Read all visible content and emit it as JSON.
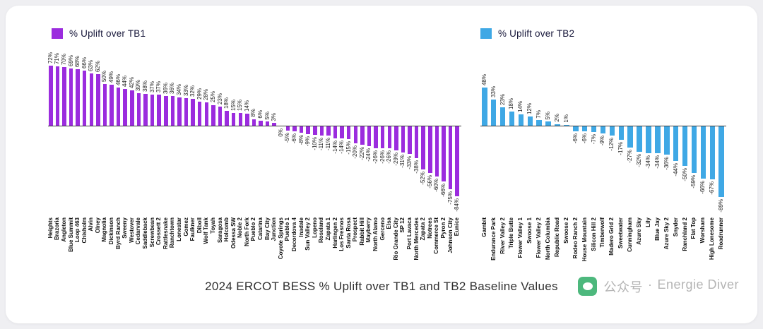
{
  "page": {
    "title": "2024 ERCOT BESS % Uplift over TB1 and TB2 Baseline Values",
    "watermark": {
      "icon": "chat-bubble-icon",
      "icon_color": "#3EB373",
      "prefix": "公众号",
      "separator": "·",
      "name": "Energie Diver"
    }
  },
  "colors": {
    "tb1_purple": "#9B2CDE",
    "tb2_blue": "#3FA8E5",
    "axis": "#3C3C3C"
  },
  "chart_data": [
    {
      "type": "bar",
      "legend": "% Uplift over TB1",
      "bar_color": "#9B2CDE",
      "value_suffix": "%",
      "xlabel": "",
      "ylabel": "",
      "ylim": [
        -90,
        80
      ],
      "grid": false,
      "legend_position": "top-left",
      "value_labels": "rotated-90-at-bar-ends",
      "category_labels": "rotated-90",
      "categories": [
        "Heights",
        "Brazoria",
        "Angleton",
        "Blue Summit",
        "Loop 463",
        "Chisholm",
        "Alvin",
        "Olney",
        "Magnolia",
        "Dickinson",
        "Byrd Ranch",
        "Sweeny",
        "Westover",
        "Cedarvale",
        "Saddleback",
        "Screwbean",
        "Crossett 2",
        "Rattlesnake",
        "Ranchtown",
        "Lonestar",
        "Gomez",
        "Faulkner",
        "Diboll",
        "Wolf Tank",
        "Toyah",
        "Saragosa",
        "Holcomb",
        "Odessa SW",
        "Noble 2",
        "North Fork",
        "Pueblo 2",
        "Catarina",
        "Bay City",
        "Junction",
        "Coyote Springs",
        "Pueblo 1",
        "Decordova 4",
        "Inadale",
        "Sun Valley 2",
        "Lopeno",
        "Roseland",
        "Zapata 1",
        "Harlingen 2",
        "Los Fresnos",
        "Santa Rosa",
        "Prospect",
        "Rabbit Hill",
        "Mayberry",
        "North Alamo",
        "Gerceno",
        "Elsa",
        "Rio Grande City",
        "SP 12",
        "Port Lavaca",
        "North Mercedes",
        "Zapata 2",
        "Notrees",
        "Commerce St",
        "Pyron 2",
        "Johnson City",
        "Eunice"
      ],
      "values": [
        72,
        71,
        70,
        69,
        68,
        66,
        63,
        62,
        50,
        49,
        46,
        44,
        42,
        39,
        38,
        37,
        37,
        36,
        36,
        34,
        33,
        32,
        29,
        28,
        25,
        23,
        18,
        15,
        15,
        14,
        8,
        6,
        5,
        3,
        0,
        -5,
        -6,
        -8,
        -9,
        -10,
        -11,
        -11,
        -14,
        -14,
        -15,
        -20,
        -22,
        -24,
        -26,
        -26,
        -26,
        -29,
        -31,
        -33,
        -38,
        -52,
        -56,
        -60,
        -66,
        -75,
        -84
      ]
    },
    {
      "type": "bar",
      "legend": "% Uplift over TB2",
      "bar_color": "#3FA8E5",
      "value_suffix": "%",
      "xlabel": "",
      "ylabel": "",
      "ylim": [
        -90,
        55
      ],
      "grid": false,
      "legend_position": "top-left",
      "value_labels": "rotated-90-at-bar-ends",
      "category_labels": "rotated-90",
      "categories": [
        "Gambit",
        "Endurance Park",
        "River Valley 2",
        "Triple Butte",
        "Flower Valley 1",
        "Swoose 1",
        "Flower Valley 2",
        "North Columbia",
        "Republic Road",
        "Swoose 2",
        "Rodeo Ranch 2",
        "House Mountain",
        "Silicon Hill 2",
        "Timberwolf",
        "Madero Grid 2",
        "Sweetwater",
        "Cunningham",
        "Azure Sky",
        "Lily",
        "Blue Jay",
        "Azure Sky 2",
        "Snyder",
        "Ranchland 2",
        "Flat Top",
        "Worsham",
        "High Lonesome",
        "Roadrunner"
      ],
      "values": [
        48,
        33,
        23,
        18,
        14,
        12,
        7,
        5,
        2,
        1,
        -6,
        -6,
        -7,
        -9,
        -12,
        -17,
        -27,
        -32,
        -34,
        -34,
        -36,
        -44,
        -50,
        -59,
        -66,
        -67,
        -89
      ]
    }
  ]
}
